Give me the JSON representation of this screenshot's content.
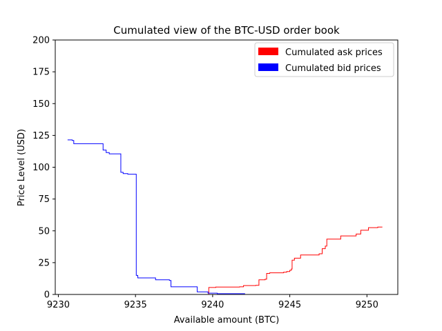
{
  "chart_data": {
    "type": "line",
    "title": "Cumulated view of the BTC-USD order book",
    "xlabel": "Available amount (BTC)",
    "ylabel": "Price Level (USD)",
    "xlim": [
      9229.8,
      9252.0
    ],
    "ylim": [
      0,
      200
    ],
    "xticks": [
      9230,
      9235,
      9240,
      9245,
      9250
    ],
    "yticks": [
      0,
      25,
      50,
      75,
      100,
      125,
      150,
      175,
      200
    ],
    "grid": false,
    "legend_position": "top-right",
    "series": [
      {
        "name": "Cumulated ask prices",
        "color": "#ff0000",
        "step": true,
        "points": [
          [
            9239.7,
            0.0
          ],
          [
            9239.75,
            5.5
          ],
          [
            9240.2,
            5.8
          ],
          [
            9241.75,
            6.0
          ],
          [
            9242.0,
            7.0
          ],
          [
            9242.8,
            7.2
          ],
          [
            9243.0,
            11.5
          ],
          [
            9243.4,
            12.0
          ],
          [
            9243.5,
            16.5
          ],
          [
            9243.7,
            17.0
          ],
          [
            9244.6,
            17.5
          ],
          [
            9244.8,
            18.0
          ],
          [
            9245.0,
            19.0
          ],
          [
            9245.1,
            20.0
          ],
          [
            9245.15,
            27.0
          ],
          [
            9245.3,
            28.5
          ],
          [
            9245.7,
            31.0
          ],
          [
            9246.9,
            32.0
          ],
          [
            9247.1,
            36.0
          ],
          [
            9247.3,
            38.0
          ],
          [
            9247.4,
            43.5
          ],
          [
            9248.3,
            46.0
          ],
          [
            9249.3,
            47.5
          ],
          [
            9249.6,
            50.5
          ],
          [
            9250.1,
            52.5
          ],
          [
            9250.7,
            53.0
          ],
          [
            9251.0,
            53.0
          ]
        ]
      },
      {
        "name": "Cumulated bid prices",
        "color": "#0000ff",
        "step": true,
        "points": [
          [
            9230.6,
            121.5
          ],
          [
            9230.9,
            121.0
          ],
          [
            9231.0,
            118.5
          ],
          [
            9232.3,
            118.5
          ],
          [
            9232.9,
            113.5
          ],
          [
            9233.1,
            111.5
          ],
          [
            9233.3,
            110.5
          ],
          [
            9234.0,
            110.5
          ],
          [
            9234.05,
            96.0
          ],
          [
            9234.2,
            95.0
          ],
          [
            9234.5,
            94.5
          ],
          [
            9235.0,
            94.5
          ],
          [
            9235.05,
            15.0
          ],
          [
            9235.15,
            13.0
          ],
          [
            9236.3,
            11.5
          ],
          [
            9237.2,
            11.0
          ],
          [
            9237.3,
            6.0
          ],
          [
            9238.9,
            6.0
          ],
          [
            9239.0,
            2.0
          ],
          [
            9239.7,
            1.0
          ],
          [
            9240.3,
            0.6
          ],
          [
            9242.1,
            0.6
          ]
        ]
      }
    ]
  }
}
